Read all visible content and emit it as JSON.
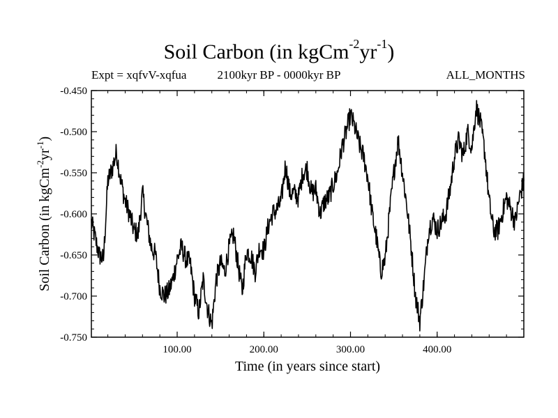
{
  "header": {
    "title_main": "Soil Carbon (in kgCm",
    "title_exp1": "-2",
    "title_mid": "yr",
    "title_exp2": "-1",
    "title_end": ")",
    "experiment": "Expt = xqfvV-xqfua",
    "period": "2100kyr BP - 0000kyr BP",
    "months": "ALL_MONTHS"
  },
  "chart_data": {
    "type": "line",
    "title": "Soil Carbon (in kgCm-2yr-1)",
    "xlabel": "Time (in years since start)",
    "ylabel": "Soil Carbon (in kgCm-2yr-1)",
    "xlim": [
      1,
      500
    ],
    "ylim": [
      -0.75,
      -0.45
    ],
    "xticks": [
      100,
      200,
      300,
      400
    ],
    "xtick_labels": [
      "100.00",
      "200.00",
      "300.00",
      "400.00"
    ],
    "yticks": [
      -0.45,
      -0.5,
      -0.55,
      -0.6,
      -0.65,
      -0.7,
      -0.75
    ],
    "ytick_labels": [
      "-0.450",
      "-0.500",
      "-0.550",
      "-0.600",
      "-0.650",
      "-0.700",
      "-0.750"
    ],
    "series": [
      {
        "name": "Soil Carbon",
        "color": "#000000",
        "x": [
          1,
          10,
          15,
          20,
          25,
          30,
          35,
          40,
          45,
          50,
          55,
          60,
          65,
          70,
          75,
          80,
          85,
          90,
          95,
          100,
          105,
          110,
          115,
          120,
          125,
          130,
          135,
          140,
          145,
          150,
          155,
          160,
          165,
          170,
          175,
          180,
          185,
          190,
          195,
          200,
          205,
          210,
          215,
          220,
          225,
          230,
          235,
          240,
          245,
          250,
          255,
          260,
          265,
          270,
          275,
          280,
          285,
          290,
          295,
          300,
          305,
          310,
          315,
          320,
          325,
          330,
          335,
          340,
          345,
          350,
          355,
          360,
          365,
          370,
          375,
          380,
          385,
          390,
          395,
          400,
          405,
          410,
          415,
          420,
          425,
          430,
          435,
          440,
          445,
          450,
          455,
          460,
          465,
          470,
          475,
          480,
          485,
          490,
          495,
          500
        ],
        "values": [
          -0.61,
          -0.65,
          -0.655,
          -0.56,
          -0.545,
          -0.525,
          -0.56,
          -0.585,
          -0.6,
          -0.62,
          -0.625,
          -0.575,
          -0.61,
          -0.64,
          -0.65,
          -0.69,
          -0.7,
          -0.695,
          -0.68,
          -0.655,
          -0.64,
          -0.655,
          -0.66,
          -0.7,
          -0.72,
          -0.68,
          -0.715,
          -0.735,
          -0.68,
          -0.66,
          -0.67,
          -0.64,
          -0.625,
          -0.66,
          -0.695,
          -0.645,
          -0.65,
          -0.67,
          -0.64,
          -0.645,
          -0.615,
          -0.6,
          -0.595,
          -0.585,
          -0.54,
          -0.575,
          -0.575,
          -0.58,
          -0.55,
          -0.545,
          -0.575,
          -0.57,
          -0.6,
          -0.585,
          -0.58,
          -0.565,
          -0.55,
          -0.52,
          -0.5,
          -0.48,
          -0.495,
          -0.515,
          -0.53,
          -0.555,
          -0.6,
          -0.63,
          -0.67,
          -0.655,
          -0.6,
          -0.55,
          -0.51,
          -0.55,
          -0.59,
          -0.64,
          -0.7,
          -0.73,
          -0.68,
          -0.62,
          -0.605,
          -0.62,
          -0.61,
          -0.6,
          -0.57,
          -0.53,
          -0.51,
          -0.53,
          -0.5,
          -0.52,
          -0.47,
          -0.49,
          -0.525,
          -0.585,
          -0.62,
          -0.62,
          -0.6,
          -0.58,
          -0.595,
          -0.61,
          -0.58,
          -0.56
        ]
      }
    ]
  }
}
